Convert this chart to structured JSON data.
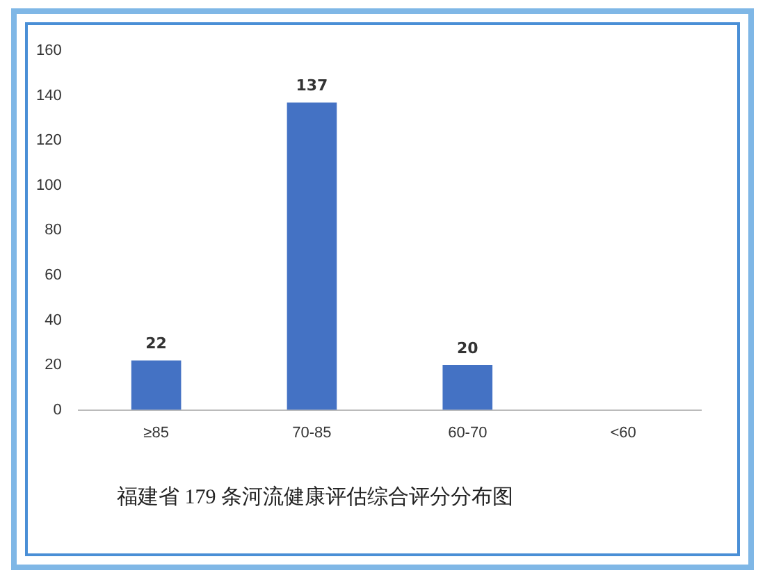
{
  "chart_data": {
    "type": "bar",
    "title": "福建省 179 条河流健康评估综合评分分布图",
    "categories": [
      "≥85",
      "70-85",
      "60-70",
      "<60"
    ],
    "values": [
      22,
      137,
      20,
      0
    ],
    "value_labels": [
      "22",
      "137",
      "20",
      null
    ],
    "color": "#4472c4",
    "ylim": [
      0,
      160
    ],
    "yticks": [
      0,
      20,
      40,
      60,
      80,
      100,
      120,
      140,
      160
    ],
    "grid": false,
    "legend": false
  }
}
